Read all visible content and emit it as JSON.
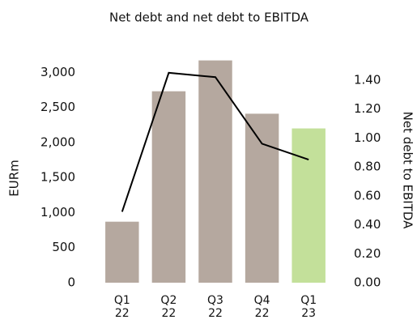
{
  "chart_data": {
    "type": "bar",
    "title": "Net debt and net debt to EBITDA",
    "ylabel": "EURm",
    "y2label": "Net debt to EBITDA",
    "categories": [
      "Q1 22",
      "Q2 22",
      "Q3 22",
      "Q4 22",
      "Q1 23"
    ],
    "series": [
      {
        "type": "bar",
        "values": [
          870,
          2730,
          3170,
          2410,
          2200
        ],
        "colors": [
          "#b5a89f",
          "#b5a89f",
          "#b5a89f",
          "#b5a89f",
          "#c3e09a"
        ]
      },
      {
        "type": "line",
        "axis": "y2",
        "color": "#000000",
        "values": [
          0.49,
          1.45,
          1.42,
          0.96,
          0.85
        ]
      }
    ],
    "ylim": [
      0,
      3200
    ],
    "yticks": [
      0,
      500,
      {
        "value": 1000,
        "label": "1,000"
      },
      {
        "value": 1500,
        "label": "1,500"
      },
      {
        "value": 2000,
        "label": "2,000"
      },
      {
        "value": 2500,
        "label": "2,500"
      },
      {
        "value": 3000,
        "label": "3,000"
      }
    ],
    "y2lim": [
      0,
      1.55
    ],
    "y2ticks": [
      {
        "value": 0,
        "label": "0.00"
      },
      {
        "value": 0.2,
        "label": "0.20"
      },
      {
        "value": 0.4,
        "label": "0.40"
      },
      {
        "value": 0.6,
        "label": "0.60"
      },
      {
        "value": 0.8,
        "label": "0.80"
      },
      {
        "value": 1.0,
        "label": "1.00"
      },
      {
        "value": 1.2,
        "label": "1.20"
      },
      {
        "value": 1.4,
        "label": "1.40"
      }
    ]
  }
}
